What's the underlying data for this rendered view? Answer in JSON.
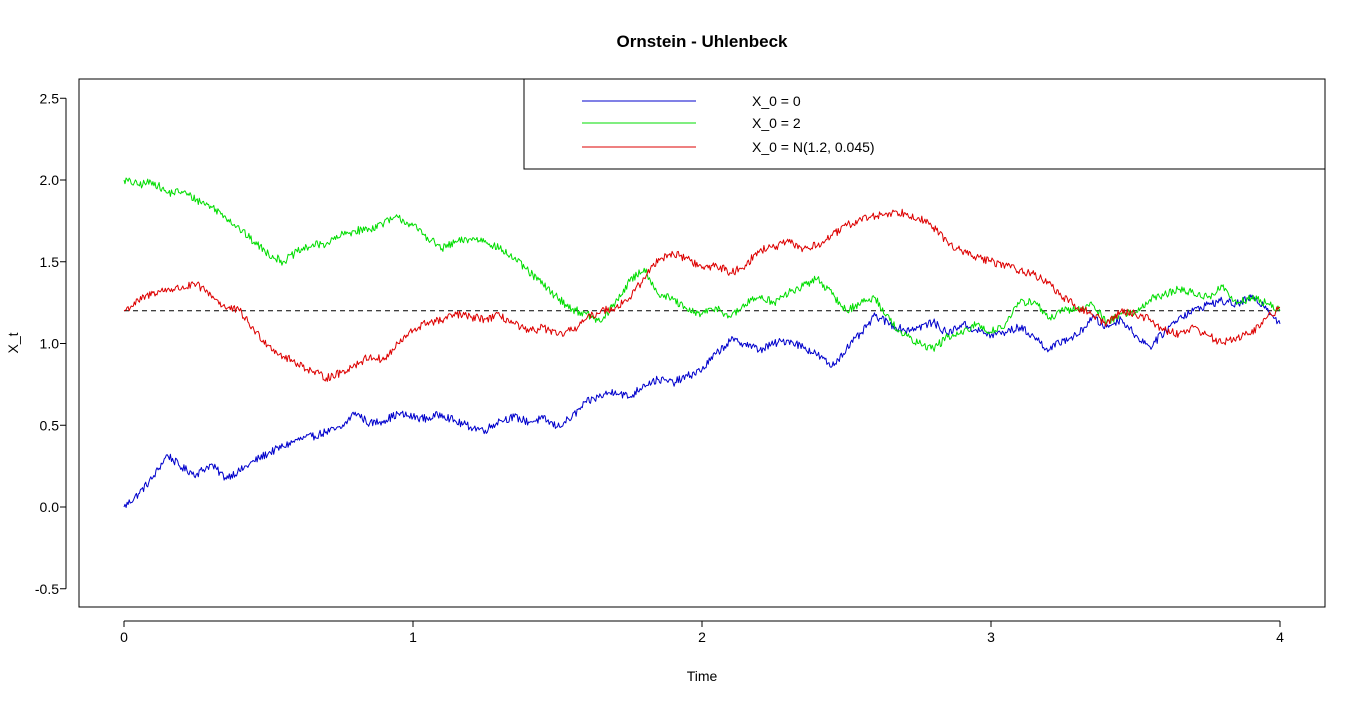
{
  "chart_data": {
    "type": "line",
    "title": "Ornstein - Uhlenbeck",
    "xlabel": "Time",
    "ylabel": "X_t",
    "xlim": [
      0,
      4
    ],
    "ylim": [
      -0.6,
      2.6
    ],
    "x_ticks": [
      "0",
      "1",
      "2",
      "3",
      "4"
    ],
    "y_ticks": [
      "-0.5",
      "0.0",
      "0.5",
      "1.0",
      "1.5",
      "2.0",
      "2.5"
    ],
    "grid": false,
    "legend_position": "top-right",
    "reference_line": {
      "y": 1.2,
      "style": "dashed",
      "color": "#000000"
    },
    "series": [
      {
        "name": "X_0 = 0",
        "color": "#0000cc",
        "x": [
          0,
          0.05,
          0.1,
          0.15,
          0.2,
          0.25,
          0.3,
          0.35,
          0.4,
          0.45,
          0.5,
          0.55,
          0.6,
          0.65,
          0.7,
          0.75,
          0.8,
          0.85,
          0.9,
          0.95,
          1.0,
          1.05,
          1.1,
          1.15,
          1.2,
          1.25,
          1.3,
          1.35,
          1.4,
          1.45,
          1.5,
          1.55,
          1.6,
          1.65,
          1.7,
          1.75,
          1.8,
          1.85,
          1.9,
          1.95,
          2.0,
          2.05,
          2.1,
          2.15,
          2.2,
          2.25,
          2.3,
          2.35,
          2.4,
          2.45,
          2.5,
          2.55,
          2.6,
          2.65,
          2.7,
          2.75,
          2.8,
          2.85,
          2.9,
          2.95,
          3.0,
          3.05,
          3.1,
          3.15,
          3.2,
          3.25,
          3.3,
          3.35,
          3.4,
          3.45,
          3.5,
          3.55,
          3.6,
          3.65,
          3.7,
          3.75,
          3.8,
          3.85,
          3.9,
          3.95,
          4.0
        ],
        "y": [
          0.0,
          0.08,
          0.18,
          0.32,
          0.24,
          0.2,
          0.26,
          0.18,
          0.22,
          0.28,
          0.33,
          0.37,
          0.41,
          0.43,
          0.46,
          0.48,
          0.58,
          0.51,
          0.53,
          0.57,
          0.55,
          0.54,
          0.57,
          0.52,
          0.49,
          0.47,
          0.53,
          0.55,
          0.52,
          0.54,
          0.49,
          0.55,
          0.64,
          0.68,
          0.71,
          0.67,
          0.75,
          0.78,
          0.76,
          0.8,
          0.84,
          0.94,
          1.02,
          1.0,
          0.96,
          1.0,
          1.02,
          0.98,
          0.93,
          0.86,
          0.97,
          1.06,
          1.17,
          1.12,
          1.08,
          1.1,
          1.13,
          1.06,
          1.12,
          1.08,
          1.05,
          1.07,
          1.1,
          1.04,
          0.96,
          1.02,
          1.05,
          1.16,
          1.1,
          1.15,
          1.05,
          0.98,
          1.07,
          1.16,
          1.2,
          1.24,
          1.26,
          1.24,
          1.28,
          1.23,
          1.12
        ]
      },
      {
        "name": "X_0 = 2",
        "color": "#00dd00",
        "x": [
          0,
          0.05,
          0.1,
          0.15,
          0.2,
          0.25,
          0.3,
          0.35,
          0.4,
          0.45,
          0.5,
          0.55,
          0.6,
          0.65,
          0.7,
          0.75,
          0.8,
          0.85,
          0.9,
          0.95,
          1.0,
          1.05,
          1.1,
          1.15,
          1.2,
          1.25,
          1.3,
          1.35,
          1.4,
          1.45,
          1.5,
          1.55,
          1.6,
          1.65,
          1.7,
          1.75,
          1.8,
          1.85,
          1.9,
          1.95,
          2.0,
          2.05,
          2.1,
          2.15,
          2.2,
          2.25,
          2.3,
          2.35,
          2.4,
          2.45,
          2.5,
          2.55,
          2.6,
          2.65,
          2.7,
          2.75,
          2.8,
          2.85,
          2.9,
          2.95,
          3.0,
          3.05,
          3.1,
          3.15,
          3.2,
          3.25,
          3.3,
          3.35,
          3.4,
          3.45,
          3.5,
          3.55,
          3.6,
          3.65,
          3.7,
          3.75,
          3.8,
          3.85,
          3.9,
          3.95,
          4.0
        ],
        "y": [
          2.0,
          1.97,
          1.99,
          1.92,
          1.93,
          1.88,
          1.84,
          1.78,
          1.7,
          1.62,
          1.55,
          1.5,
          1.56,
          1.6,
          1.61,
          1.66,
          1.69,
          1.7,
          1.74,
          1.77,
          1.72,
          1.65,
          1.58,
          1.62,
          1.64,
          1.63,
          1.58,
          1.52,
          1.44,
          1.36,
          1.28,
          1.21,
          1.18,
          1.13,
          1.25,
          1.38,
          1.46,
          1.3,
          1.27,
          1.2,
          1.18,
          1.22,
          1.16,
          1.24,
          1.29,
          1.25,
          1.31,
          1.35,
          1.4,
          1.3,
          1.2,
          1.25,
          1.28,
          1.14,
          1.05,
          1.0,
          0.97,
          1.04,
          1.06,
          1.12,
          1.07,
          1.12,
          1.25,
          1.26,
          1.15,
          1.2,
          1.21,
          1.24,
          1.13,
          1.18,
          1.19,
          1.27,
          1.3,
          1.33,
          1.31,
          1.28,
          1.35,
          1.24,
          1.28,
          1.25,
          1.2
        ]
      },
      {
        "name": "X_0 = N(1.2, 0.045)",
        "color": "#dd0000",
        "x": [
          0,
          0.05,
          0.1,
          0.15,
          0.2,
          0.25,
          0.3,
          0.35,
          0.4,
          0.45,
          0.5,
          0.55,
          0.6,
          0.65,
          0.7,
          0.75,
          0.8,
          0.85,
          0.9,
          0.95,
          1.0,
          1.05,
          1.1,
          1.15,
          1.2,
          1.25,
          1.3,
          1.35,
          1.4,
          1.45,
          1.5,
          1.55,
          1.6,
          1.65,
          1.7,
          1.75,
          1.8,
          1.85,
          1.9,
          1.95,
          2.0,
          2.05,
          2.1,
          2.15,
          2.2,
          2.25,
          2.3,
          2.35,
          2.4,
          2.45,
          2.5,
          2.55,
          2.6,
          2.65,
          2.7,
          2.75,
          2.8,
          2.85,
          2.9,
          2.95,
          3.0,
          3.05,
          3.1,
          3.15,
          3.2,
          3.25,
          3.3,
          3.35,
          3.4,
          3.45,
          3.5,
          3.55,
          3.6,
          3.65,
          3.7,
          3.75,
          3.8,
          3.85,
          3.9,
          3.95,
          4.0
        ],
        "y": [
          1.2,
          1.26,
          1.31,
          1.33,
          1.34,
          1.36,
          1.3,
          1.22,
          1.2,
          1.08,
          0.99,
          0.92,
          0.88,
          0.83,
          0.79,
          0.82,
          0.87,
          0.92,
          0.9,
          1.0,
          1.08,
          1.13,
          1.14,
          1.18,
          1.16,
          1.15,
          1.17,
          1.12,
          1.07,
          1.1,
          1.05,
          1.08,
          1.15,
          1.2,
          1.22,
          1.28,
          1.4,
          1.52,
          1.55,
          1.52,
          1.46,
          1.48,
          1.43,
          1.48,
          1.57,
          1.59,
          1.62,
          1.58,
          1.6,
          1.66,
          1.72,
          1.76,
          1.78,
          1.8,
          1.8,
          1.77,
          1.71,
          1.62,
          1.56,
          1.53,
          1.5,
          1.48,
          1.45,
          1.42,
          1.37,
          1.28,
          1.22,
          1.18,
          1.12,
          1.2,
          1.18,
          1.15,
          1.08,
          1.06,
          1.1,
          1.05,
          1.0,
          1.04,
          1.06,
          1.15,
          1.22
        ]
      }
    ]
  }
}
